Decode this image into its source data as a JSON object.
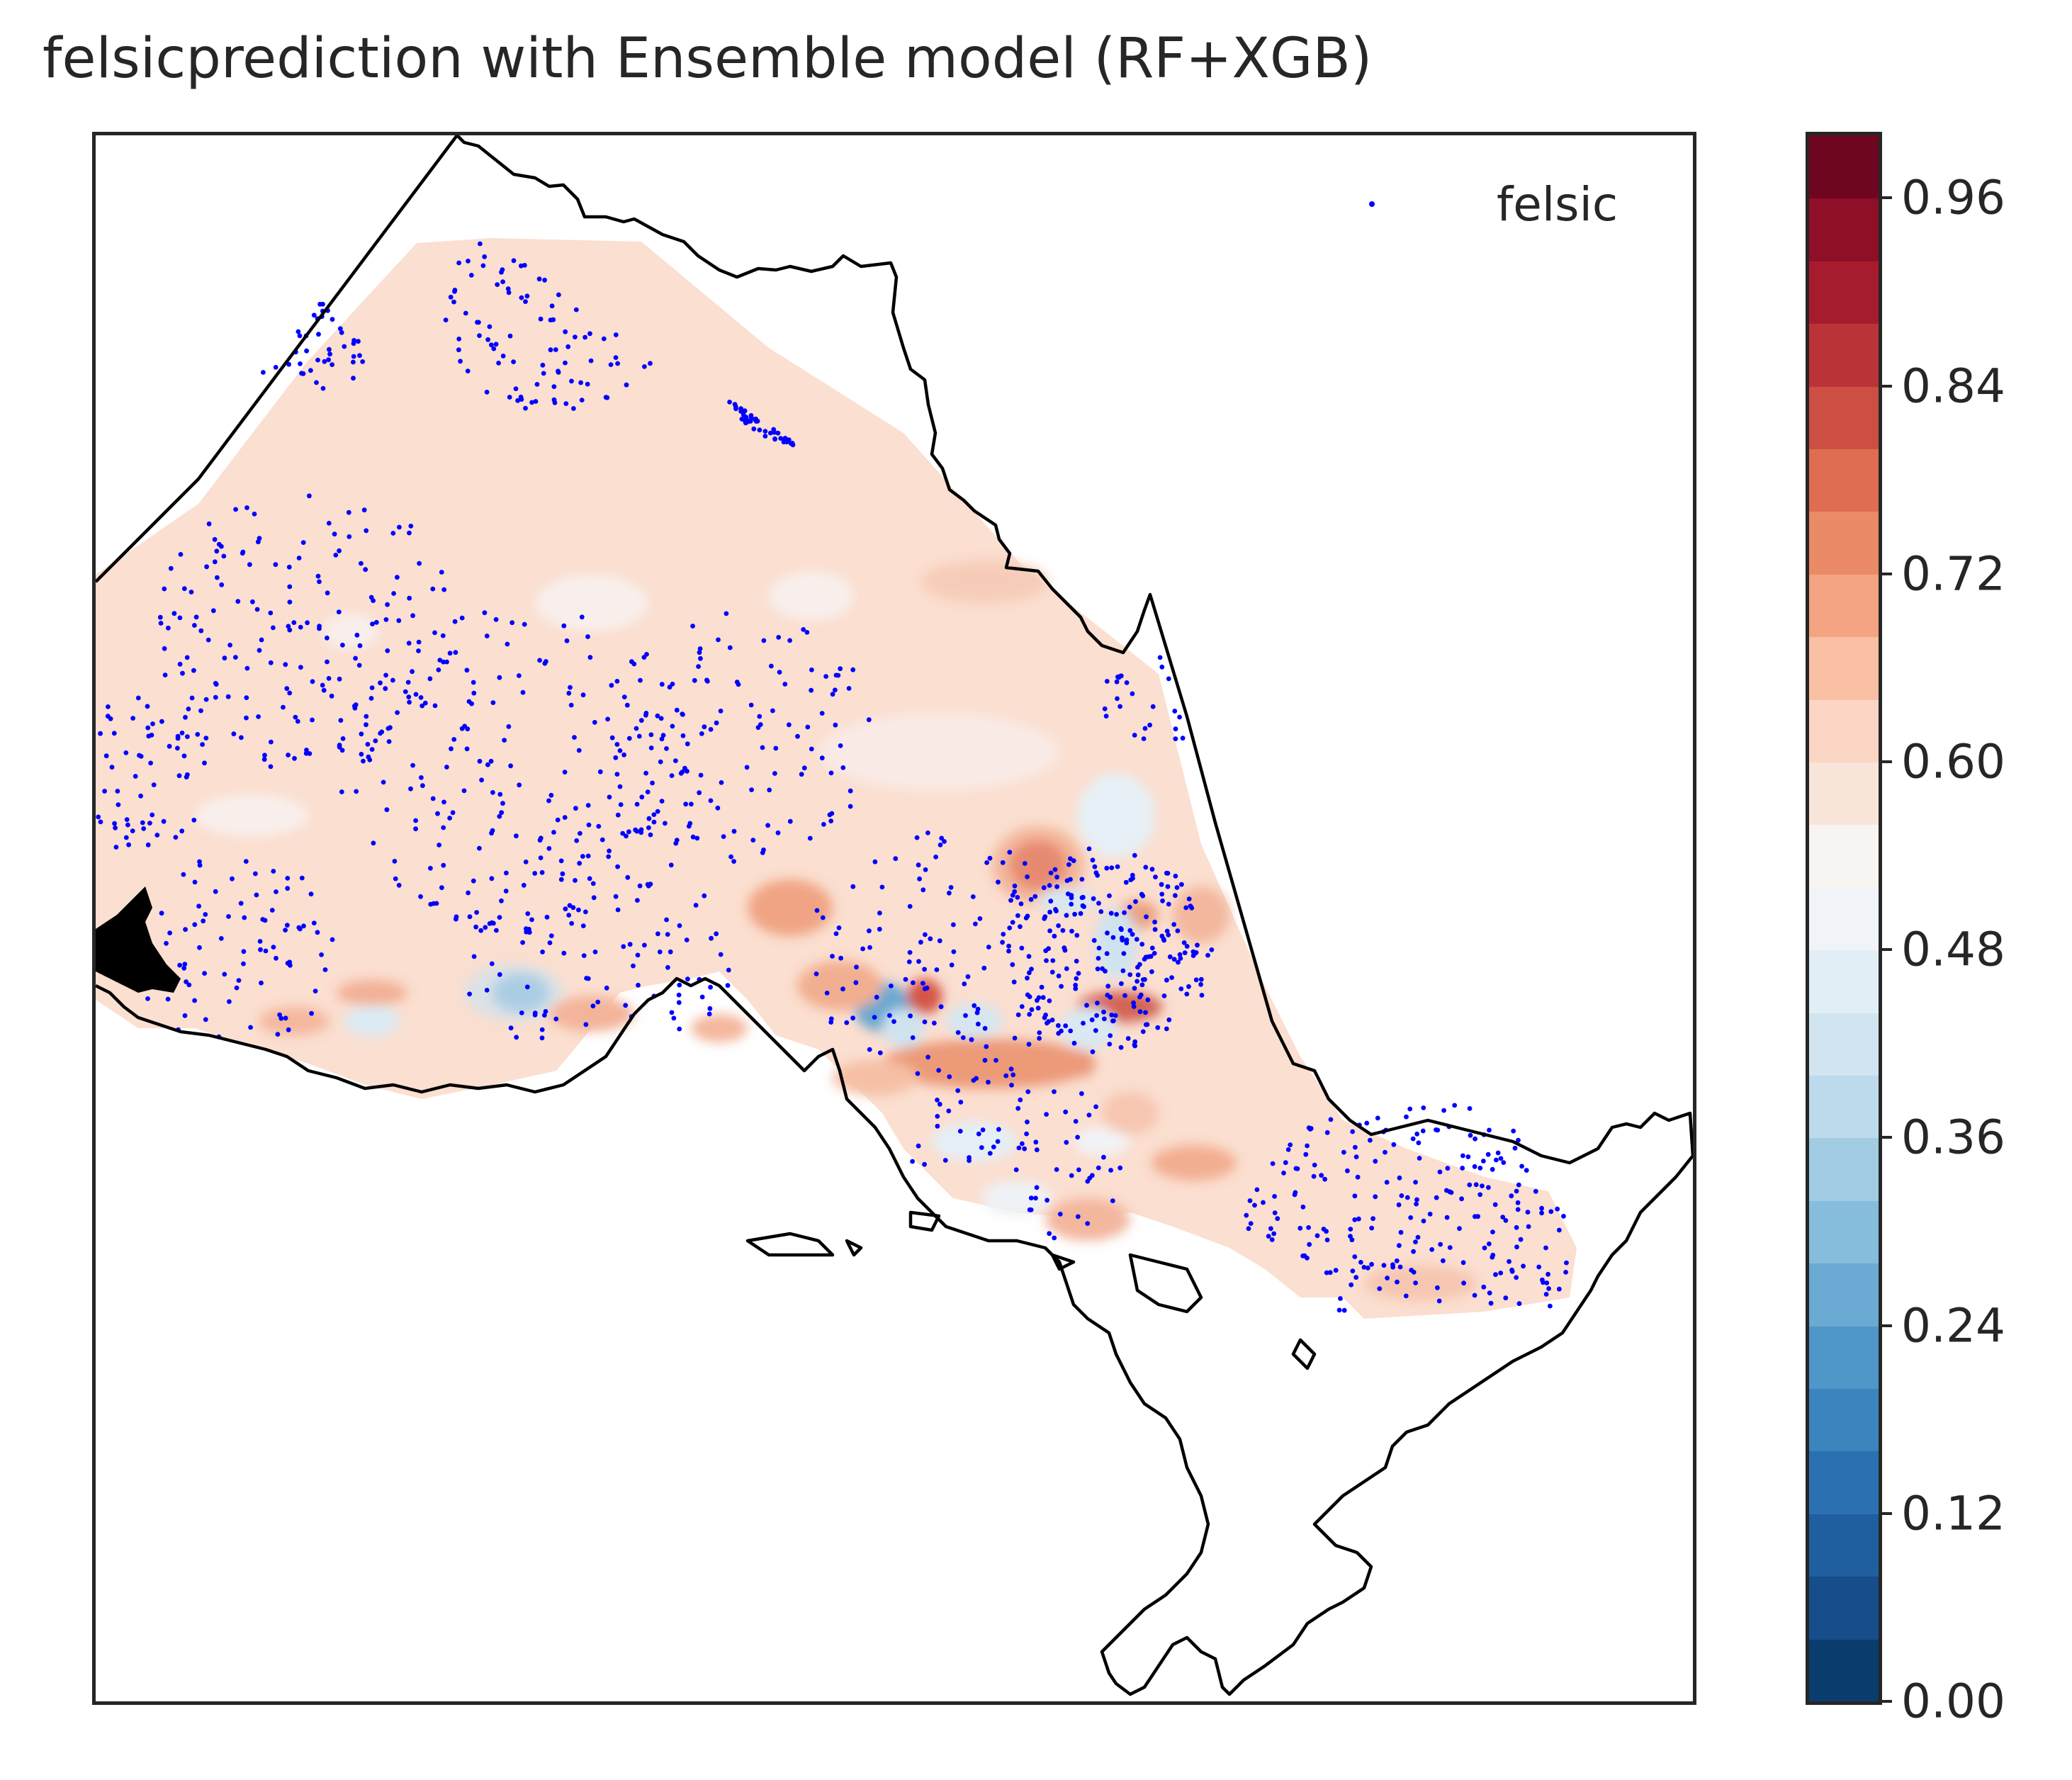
{
  "title": "felsicprediction with Ensemble model (RF+XGB)",
  "legend": {
    "label": "felsic",
    "marker_color": "#0000ff"
  },
  "colorbar": {
    "ticks": [
      "0.96",
      "0.84",
      "0.72",
      "0.60",
      "0.48",
      "0.36",
      "0.24",
      "0.12",
      "0.00"
    ],
    "tick_values": [
      0.96,
      0.84,
      0.72,
      0.6,
      0.48,
      0.36,
      0.24,
      0.12,
      0.0
    ],
    "range": [
      0.0,
      1.0
    ],
    "colormap": "RdBu_r",
    "colors": [
      "#0b3c6e",
      "#164d8a",
      "#1f5fa0",
      "#2b71b2",
      "#3b84be",
      "#4f97c8",
      "#6aaad3",
      "#86bcdc",
      "#a2cce4",
      "#bcdaeb",
      "#d1e5f1",
      "#e2eef6",
      "#f0f4f8",
      "#f7f4f2",
      "#f8e4d9",
      "#fbd6c4",
      "#f9c0a4",
      "#f4a482",
      "#ea8a67",
      "#de6d52",
      "#cd4f44",
      "#bb3338",
      "#a61c2e",
      "#8e0f27",
      "#6f0620"
    ]
  },
  "chart_data": {
    "type": "map",
    "title": "felsicprediction with Ensemble model (RF+XGB)",
    "colorbar_range": [
      0.0,
      1.0
    ],
    "colorbar_ticks": [
      0.0,
      0.12,
      0.24,
      0.36,
      0.48,
      0.6,
      0.72,
      0.84,
      0.96
    ],
    "series": [
      {
        "name": "felsic",
        "marker": "point",
        "color": "#0000ff"
      }
    ],
    "background_value": 0.57
  }
}
